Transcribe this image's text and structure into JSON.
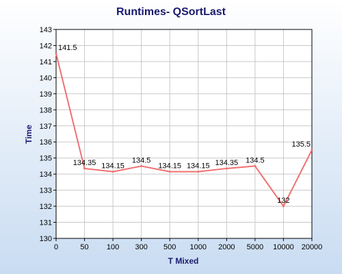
{
  "chart_data": {
    "type": "line",
    "title": "Runtimes- QSortLast",
    "xlabel": "T Mixed",
    "ylabel": "Time",
    "categories": [
      "0",
      "50",
      "100",
      "300",
      "500",
      "1000",
      "2000",
      "5000",
      "10000",
      "20000"
    ],
    "series": [
      {
        "values": [
          141.5,
          134.35,
          134.15,
          134.5,
          134.15,
          134.15,
          134.35,
          134.5,
          132,
          135.5
        ],
        "data_labels": [
          "141.5",
          "134.35",
          "134.15",
          "134.5",
          "134.15",
          "134.15",
          "134.35",
          "134.5",
          "132",
          "135.5"
        ],
        "color": "#f07070"
      }
    ],
    "ylim": [
      130,
      143
    ],
    "yticks": [
      "130",
      "131",
      "132",
      "133",
      "134",
      "135",
      "136",
      "137",
      "138",
      "139",
      "140",
      "141",
      "142",
      "143"
    ],
    "grid": true,
    "legend": "none",
    "colors": {
      "background_top": "#ffffff",
      "background_bottom": "#c9dcf2",
      "plot_background": "#ffffff",
      "grid": "#c8c8c8",
      "title": "#1a1a6e",
      "axis_label": "#1a1a6e"
    }
  }
}
